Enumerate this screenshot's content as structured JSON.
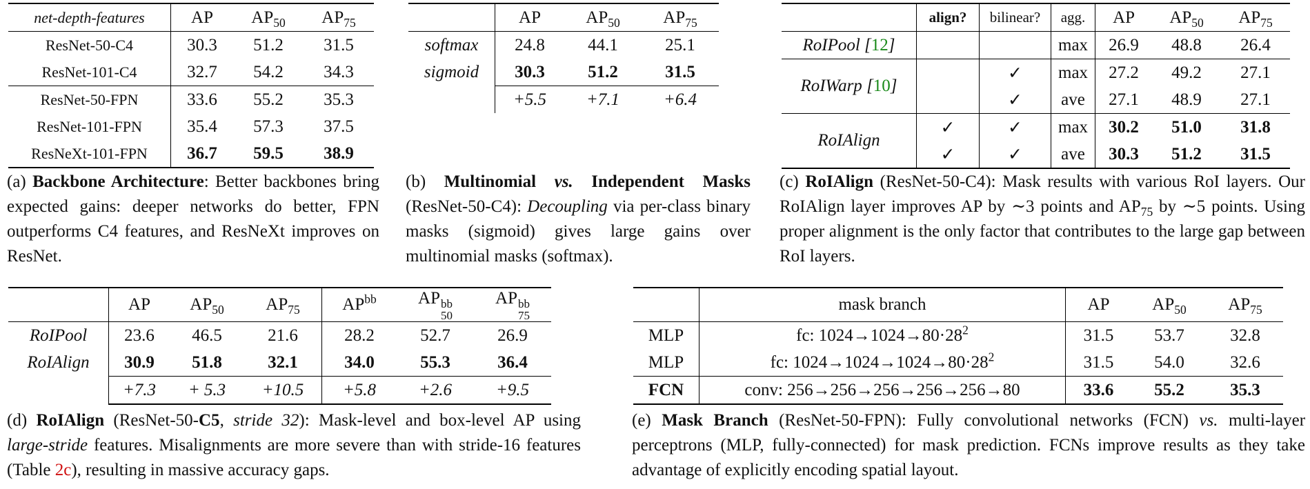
{
  "table_a": {
    "header": [
      "net-depth-features",
      "AP",
      "AP",
      "AP"
    ],
    "header_subs": [
      "",
      "",
      "50",
      "75"
    ],
    "rows": [
      [
        "ResNet-50-C4",
        "30.3",
        "51.2",
        "31.5"
      ],
      [
        "ResNet-101-C4",
        "32.7",
        "54.2",
        "34.3"
      ],
      [
        "ResNet-50-FPN",
        "33.6",
        "55.2",
        "35.3"
      ],
      [
        "ResNet-101-FPN",
        "35.4",
        "57.3",
        "37.5"
      ],
      [
        "ResNeXt-101-FPN",
        "36.7",
        "59.5",
        "38.9"
      ]
    ]
  },
  "caption_a": {
    "label": "(a)",
    "title": "Backbone Architecture",
    "text": ": Better backbones bring expected gains: deeper networks do better, FPN outperforms C4 features, and ResNeXt improves on ResNet."
  },
  "table_b": {
    "header": [
      "AP",
      "AP",
      "AP"
    ],
    "header_subs": [
      "",
      "50",
      "75"
    ],
    "rows": [
      [
        "softmax",
        "24.8",
        "44.1",
        "25.1"
      ],
      [
        "sigmoid",
        "30.3",
        "51.2",
        "31.5"
      ]
    ],
    "delta": [
      "+5.5",
      "+7.1",
      "+6.4"
    ]
  },
  "caption_b": {
    "label": "(b)",
    "title_a": "Multinomial",
    "title_vs": "vs.",
    "title_b": "Independent Masks",
    "text_a": " (ResNet-50-C4): ",
    "text_em": "Decoupling",
    "text_b": " via per-class binary masks (sigmoid) gives large gains over multinomial masks (softmax)."
  },
  "table_c": {
    "header": [
      "align?",
      "bilinear?",
      "agg.",
      "AP",
      "AP",
      "AP"
    ],
    "header_subs": [
      "",
      "",
      "",
      "",
      "50",
      "75"
    ],
    "check": "✓",
    "roipool": {
      "name": "RoIPool",
      "ref": "12",
      "agg": "max",
      "ap": "26.9",
      "ap50": "48.8",
      "ap75": "26.4"
    },
    "roiwarp": {
      "name": "RoIWarp",
      "ref": "10",
      "rows": [
        {
          "agg": "max",
          "ap": "27.2",
          "ap50": "49.2",
          "ap75": "27.1"
        },
        {
          "agg": "ave",
          "ap": "27.1",
          "ap50": "48.9",
          "ap75": "27.1"
        }
      ]
    },
    "roialign": {
      "name": "RoIAlign",
      "rows": [
        {
          "agg": "max",
          "ap": "30.2",
          "ap50": "51.0",
          "ap75": "31.8"
        },
        {
          "agg": "ave",
          "ap": "30.3",
          "ap50": "51.2",
          "ap75": "31.5"
        }
      ]
    }
  },
  "caption_c": {
    "label": "(c)",
    "title": "RoIAlign",
    "text_a": " (ResNet-50-C4): Mask results with various RoI layers. Our RoIAlign layer improves AP by ∼3 points and AP",
    "sub": "75",
    "text_b": " by ∼5 points. Using proper alignment is the only factor that contributes to the large gap between RoI layers."
  },
  "table_d": {
    "header": [
      "AP",
      "AP",
      "AP",
      "AP",
      "AP",
      "AP"
    ],
    "header_subs": [
      "",
      "50",
      "75",
      "",
      "50",
      "75"
    ],
    "header_sups": [
      "",
      "",
      "",
      "bb",
      "bb",
      "bb"
    ],
    "rows": [
      [
        "RoIPool",
        "23.6",
        "46.5",
        "21.6",
        "28.2",
        "52.7",
        "26.9"
      ],
      [
        "RoIAlign",
        "30.9",
        "51.8",
        "32.1",
        "34.0",
        "55.3",
        "36.4"
      ]
    ],
    "delta": [
      "+7.3",
      "+ 5.3",
      "+10.5",
      "+5.8",
      "+2.6",
      "+9.5"
    ]
  },
  "caption_d": {
    "label": "(d)",
    "title": "RoIAlign",
    "text_a": " (ResNet-50-",
    "c5": "C5",
    "text_comma": ", ",
    "stride": "stride 32",
    "text_b": "): Mask-level and box-level AP using ",
    "large": "large-stride",
    "text_c": " features. Misalignments are more severe than with stride-16 features (Table ",
    "tableref": "2c",
    "text_d": "), resulting in massive accuracy gaps."
  },
  "table_e": {
    "header": [
      "mask branch",
      "AP",
      "AP",
      "AP"
    ],
    "header_subs": [
      "",
      "",
      "50",
      "75"
    ],
    "rows": [
      [
        "MLP",
        "fc: 1024→1024→80·28",
        "31.5",
        "53.7",
        "32.8"
      ],
      [
        "MLP",
        "fc: 1024→1024→1024→80·28",
        "31.5",
        "54.0",
        "32.6"
      ],
      [
        "FCN",
        "conv: 256→256→256→256→256→80",
        "33.6",
        "55.2",
        "35.3"
      ]
    ],
    "sup": "2"
  },
  "caption_e": {
    "label": "(e)",
    "title": "Mask Branch",
    "text_a": " (ResNet-50-FPN): Fully convolutional networks (FCN) ",
    "vs": "vs.",
    "text_b": " multi-layer perceptrons (MLP, fully-connected) for mask prediction. FCNs improve results as they take advantage of explicitly encoding spatial layout."
  }
}
